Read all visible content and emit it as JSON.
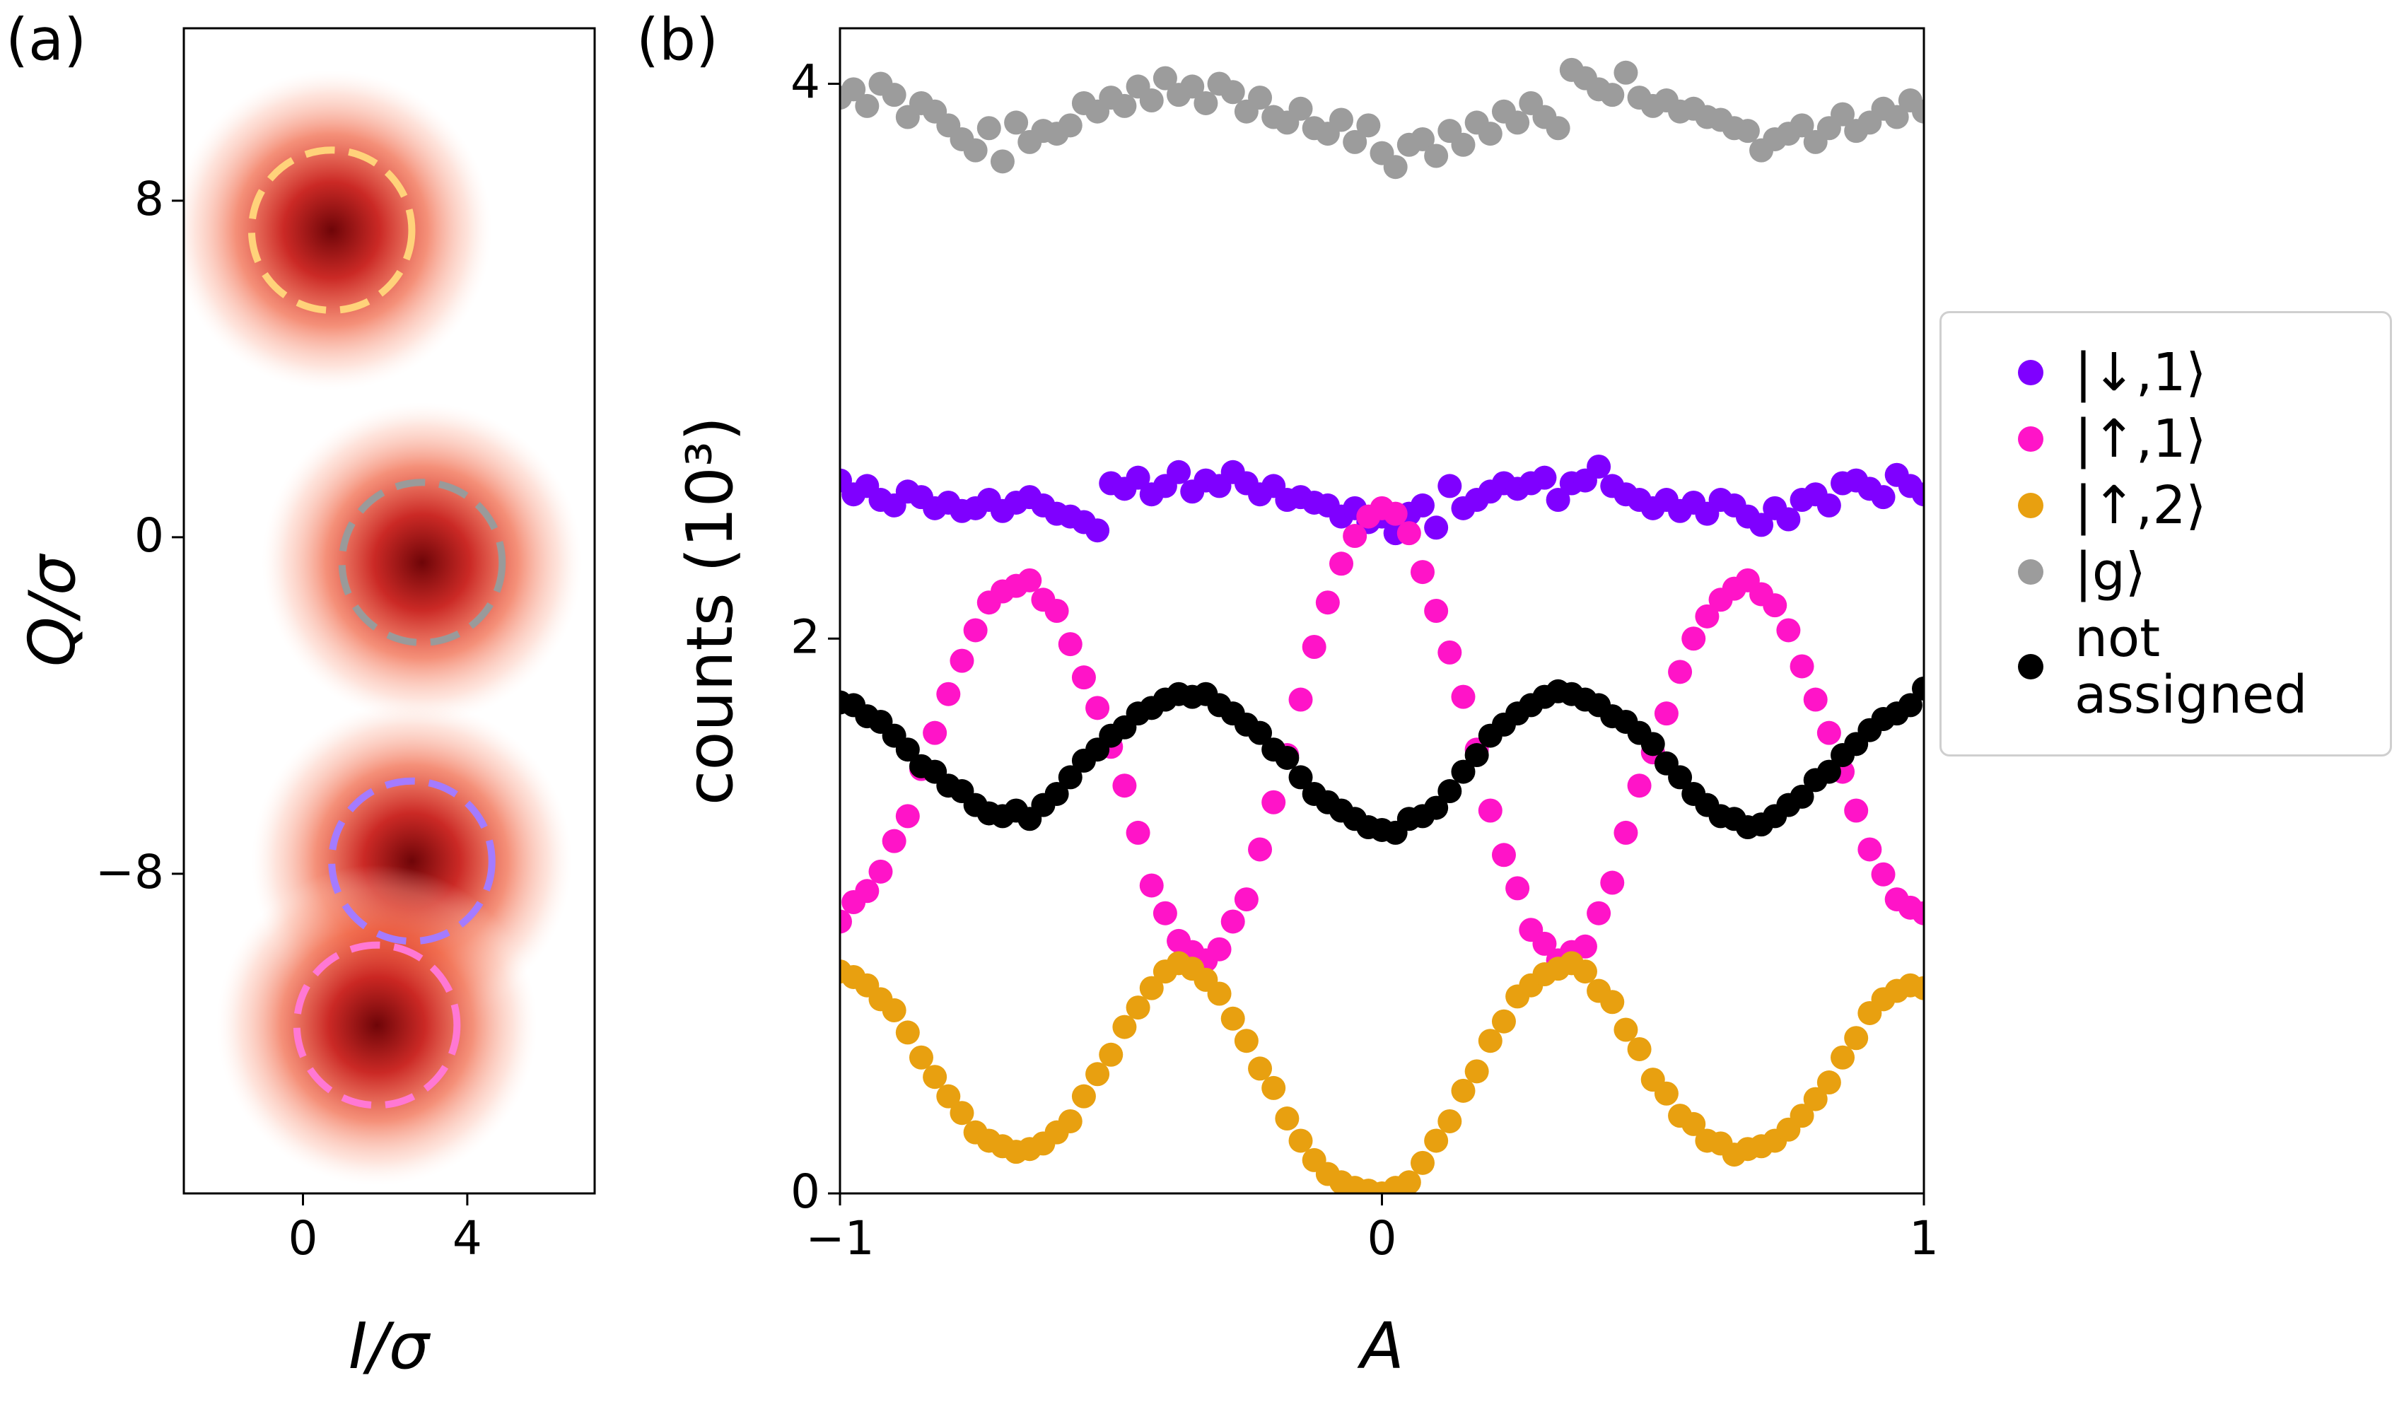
{
  "chart_data": [
    {
      "type": "heatmap",
      "panel_label": "(a)",
      "xlabel": "I/σ",
      "ylabel": "Q/σ",
      "xlim": [
        -2.9,
        7.1
      ],
      "ylim": [
        -15.6,
        12.1
      ],
      "xticks": [
        0,
        4
      ],
      "yticks": [
        {
          "value": -8,
          "label": "−8"
        },
        0,
        8
      ],
      "circles": [
        {
          "center": [
            0.7,
            7.3
          ],
          "radius": 1.95,
          "color": "#ffd27a"
        },
        {
          "center": [
            2.9,
            -0.6
          ],
          "radius": 1.95,
          "color": "#9a9a9a"
        },
        {
          "center": [
            2.65,
            -7.7
          ],
          "radius": 1.95,
          "color": "#a47bff"
        },
        {
          "center": [
            1.8,
            -11.6
          ],
          "radius": 1.95,
          "color": "#ff78d4"
        }
      ]
    },
    {
      "type": "scatter",
      "panel_label": "(b)",
      "xlabel": "A",
      "ylabel": "counts (10³)",
      "xlim": [
        -1,
        1
      ],
      "ylim": [
        0,
        4.2
      ],
      "xticks": [
        {
          "value": -1,
          "label": "−1"
        },
        0,
        1
      ],
      "yticks": [
        0,
        2,
        4
      ],
      "legend": "outside right",
      "x": [
        -1,
        -0.975,
        -0.95,
        -0.925,
        -0.9,
        -0.875,
        -0.85,
        -0.825,
        -0.8,
        -0.775,
        -0.75,
        -0.725,
        -0.7,
        -0.675,
        -0.65,
        -0.625,
        -0.6,
        -0.575,
        -0.55,
        -0.525,
        -0.5,
        -0.475,
        -0.45,
        -0.425,
        -0.4,
        -0.375,
        -0.35,
        -0.325,
        -0.3,
        -0.275,
        -0.25,
        -0.225,
        -0.2,
        -0.175,
        -0.15,
        -0.125,
        -0.1,
        -0.075,
        -0.05,
        -0.025,
        0,
        0.025,
        0.05,
        0.075,
        0.1,
        0.125,
        0.15,
        0.175,
        0.2,
        0.225,
        0.25,
        0.275,
        0.3,
        0.325,
        0.35,
        0.375,
        0.4,
        0.425,
        0.45,
        0.475,
        0.5,
        0.525,
        0.55,
        0.575,
        0.6,
        0.625,
        0.65,
        0.675,
        0.7,
        0.725,
        0.75,
        0.775,
        0.8,
        0.825,
        0.85,
        0.875,
        0.9,
        0.925,
        0.95,
        0.975,
        1
      ],
      "series": [
        {
          "name": "|↓,1⟩",
          "color": "#7f00ff",
          "values": [
            2.57,
            2.52,
            2.55,
            2.5,
            2.48,
            2.53,
            2.51,
            2.47,
            2.49,
            2.46,
            2.47,
            2.5,
            2.46,
            2.49,
            2.51,
            2.48,
            2.45,
            2.44,
            2.42,
            2.39,
            2.56,
            2.54,
            2.58,
            2.52,
            2.55,
            2.6,
            2.53,
            2.57,
            2.55,
            2.6,
            2.56,
            2.52,
            2.55,
            2.5,
            2.51,
            2.49,
            2.48,
            2.44,
            2.47,
            2.42,
            2.44,
            2.38,
            2.45,
            2.48,
            2.4,
            2.55,
            2.47,
            2.5,
            2.53,
            2.56,
            2.54,
            2.56,
            2.58,
            2.5,
            2.56,
            2.57,
            2.62,
            2.55,
            2.52,
            2.5,
            2.47,
            2.5,
            2.46,
            2.49,
            2.45,
            2.5,
            2.48,
            2.44,
            2.41,
            2.47,
            2.43,
            2.5,
            2.52,
            2.48,
            2.56,
            2.57,
            2.54,
            2.51,
            2.59,
            2.55,
            2.52
          ]
        },
        {
          "name": "|↑,1⟩",
          "color": "#ff14c8",
          "values": [
            0.98,
            1.05,
            1.09,
            1.16,
            1.27,
            1.36,
            1.53,
            1.66,
            1.8,
            1.92,
            2.03,
            2.13,
            2.17,
            2.19,
            2.21,
            2.14,
            2.1,
            1.98,
            1.86,
            1.75,
            1.61,
            1.47,
            1.3,
            1.11,
            1.01,
            0.91,
            0.87,
            0.84,
            0.88,
            0.98,
            1.06,
            1.24,
            1.41,
            1.58,
            1.78,
            1.97,
            2.13,
            2.27,
            2.37,
            2.44,
            2.47,
            2.45,
            2.38,
            2.24,
            2.1,
            1.95,
            1.79,
            1.6,
            1.38,
            1.22,
            1.1,
            0.95,
            0.9,
            0.84,
            0.87,
            0.89,
            1.01,
            1.12,
            1.3,
            1.47,
            1.59,
            1.73,
            1.88,
            2.0,
            2.08,
            2.14,
            2.18,
            2.21,
            2.16,
            2.12,
            2.03,
            1.9,
            1.78,
            1.66,
            1.52,
            1.38,
            1.24,
            1.15,
            1.06,
            1.03,
            1.01
          ]
        },
        {
          "name": "|↑,2⟩",
          "color": "#e8a010",
          "values": [
            0.8,
            0.78,
            0.75,
            0.7,
            0.66,
            0.58,
            0.49,
            0.42,
            0.35,
            0.29,
            0.22,
            0.19,
            0.17,
            0.15,
            0.16,
            0.18,
            0.22,
            0.26,
            0.35,
            0.43,
            0.5,
            0.6,
            0.67,
            0.74,
            0.8,
            0.83,
            0.81,
            0.77,
            0.72,
            0.63,
            0.55,
            0.45,
            0.38,
            0.27,
            0.19,
            0.12,
            0.07,
            0.04,
            0.02,
            0.01,
            0.0,
            0.02,
            0.04,
            0.11,
            0.19,
            0.26,
            0.37,
            0.44,
            0.55,
            0.62,
            0.71,
            0.75,
            0.79,
            0.81,
            0.83,
            0.8,
            0.73,
            0.69,
            0.59,
            0.52,
            0.41,
            0.36,
            0.28,
            0.25,
            0.19,
            0.18,
            0.14,
            0.16,
            0.17,
            0.19,
            0.23,
            0.28,
            0.34,
            0.4,
            0.49,
            0.56,
            0.65,
            0.7,
            0.73,
            0.75,
            0.74
          ]
        },
        {
          "name": "|g⟩",
          "color": "#9c9c9c",
          "values": [
            3.95,
            3.98,
            3.92,
            4.0,
            3.96,
            3.88,
            3.93,
            3.9,
            3.85,
            3.8,
            3.76,
            3.84,
            3.72,
            3.86,
            3.79,
            3.83,
            3.82,
            3.85,
            3.93,
            3.9,
            3.95,
            3.92,
            3.99,
            3.94,
            4.02,
            3.96,
            3.99,
            3.93,
            4.0,
            3.97,
            3.9,
            3.95,
            3.88,
            3.86,
            3.91,
            3.84,
            3.82,
            3.87,
            3.79,
            3.85,
            3.75,
            3.7,
            3.78,
            3.8,
            3.74,
            3.83,
            3.78,
            3.86,
            3.82,
            3.9,
            3.86,
            3.93,
            3.88,
            3.84,
            4.05,
            4.02,
            3.98,
            3.96,
            4.04,
            3.95,
            3.92,
            3.94,
            3.9,
            3.91,
            3.88,
            3.87,
            3.84,
            3.83,
            3.76,
            3.8,
            3.82,
            3.85,
            3.79,
            3.84,
            3.89,
            3.83,
            3.86,
            3.91,
            3.88,
            3.94,
            3.9
          ]
        },
        {
          "name": "not assigned",
          "color": "#000000",
          "values": [
            1.77,
            1.76,
            1.72,
            1.7,
            1.65,
            1.6,
            1.54,
            1.52,
            1.47,
            1.45,
            1.4,
            1.37,
            1.36,
            1.38,
            1.35,
            1.4,
            1.44,
            1.5,
            1.56,
            1.6,
            1.65,
            1.68,
            1.73,
            1.75,
            1.78,
            1.8,
            1.79,
            1.8,
            1.76,
            1.73,
            1.69,
            1.66,
            1.6,
            1.57,
            1.5,
            1.44,
            1.41,
            1.38,
            1.35,
            1.32,
            1.31,
            1.3,
            1.35,
            1.36,
            1.39,
            1.45,
            1.52,
            1.58,
            1.65,
            1.69,
            1.73,
            1.76,
            1.79,
            1.81,
            1.8,
            1.78,
            1.76,
            1.72,
            1.7,
            1.66,
            1.62,
            1.55,
            1.5,
            1.44,
            1.4,
            1.36,
            1.35,
            1.32,
            1.33,
            1.36,
            1.4,
            1.43,
            1.49,
            1.52,
            1.58,
            1.62,
            1.67,
            1.71,
            1.73,
            1.76,
            1.82
          ]
        }
      ]
    }
  ]
}
